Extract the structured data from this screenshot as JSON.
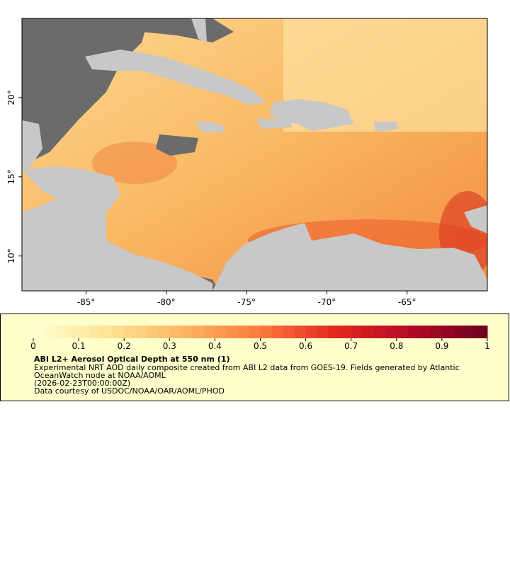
{
  "map": {
    "xlim": [
      -89,
      -60
    ],
    "ylim": [
      7.8,
      25
    ],
    "xticks": [
      {
        "value": -85,
        "label": "-85°"
      },
      {
        "value": -80,
        "label": "-80°"
      },
      {
        "value": -75,
        "label": "-75°"
      },
      {
        "value": -70,
        "label": "-70°"
      },
      {
        "value": -65,
        "label": "-65°"
      }
    ],
    "yticks": [
      {
        "value": 10,
        "label": "10°"
      },
      {
        "value": 15,
        "label": "15°"
      },
      {
        "value": 20,
        "label": "20°"
      }
    ]
  },
  "colorbar": {
    "lim": [
      0,
      1
    ],
    "ticks": [
      0,
      0.1,
      0.2,
      0.3,
      0.4,
      0.5,
      0.6,
      0.7,
      0.8,
      0.9,
      1
    ],
    "palette": [
      "#ffffd4",
      "#fee391",
      "#fdb462",
      "#fb7a3c",
      "#e3261f",
      "#b30a26",
      "#6b0020"
    ]
  },
  "legend": {
    "title": "ABI L2+ Aerosol Optical Depth at 550 nm (1)",
    "lines": [
      "Experimental NRT AOD daily composite created from ABI L2 data from GOES-19. Fields generated by Atlantic",
      "OceanWatch node at NOAA/AOML",
      "(2026-02-23T00:00:00Z)",
      "Data courtesy of USDOC/NOAA/OAR/AOML/PHOD"
    ]
  }
}
